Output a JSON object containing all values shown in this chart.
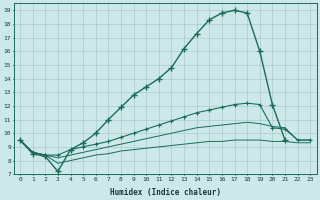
{
  "xlabel": "Humidex (Indice chaleur)",
  "bg_color": "#cce8e8",
  "grid_color": "#aacccc",
  "line_color": "#1a6b5a",
  "xlim": [
    -0.5,
    23.5
  ],
  "ylim": [
    7,
    19.5
  ],
  "xticks": [
    0,
    1,
    2,
    3,
    4,
    5,
    6,
    7,
    8,
    9,
    10,
    11,
    12,
    13,
    14,
    15,
    16,
    17,
    18,
    19,
    20,
    21,
    22,
    23
  ],
  "yticks": [
    7,
    8,
    9,
    10,
    11,
    12,
    13,
    14,
    15,
    16,
    17,
    18,
    19
  ],
  "curve1_x": [
    0,
    1,
    2,
    3,
    4,
    5,
    6,
    7,
    8,
    9,
    10,
    11,
    12,
    13,
    14,
    15,
    16,
    17,
    18,
    19,
    20,
    21
  ],
  "curve1_y": [
    9.5,
    8.5,
    8.3,
    7.2,
    8.8,
    9.3,
    10.0,
    11.0,
    11.9,
    12.8,
    13.4,
    14.0,
    14.8,
    16.2,
    17.3,
    18.3,
    18.8,
    19.0,
    18.8,
    16.0,
    12.1,
    9.5
  ],
  "curve2_x": [
    0,
    1,
    2,
    3,
    4,
    5,
    6,
    7,
    8,
    9,
    10,
    11,
    12,
    13,
    14,
    15,
    16,
    17,
    18,
    19,
    20,
    21,
    22,
    23
  ],
  "curve2_y": [
    9.5,
    8.6,
    8.4,
    8.4,
    8.8,
    9.0,
    9.2,
    9.4,
    9.7,
    10.0,
    10.3,
    10.6,
    10.9,
    11.2,
    11.5,
    11.7,
    11.9,
    12.1,
    12.2,
    12.1,
    10.4,
    10.3,
    9.5,
    9.5
  ],
  "curve3_x": [
    0,
    1,
    2,
    3,
    4,
    5,
    6,
    7,
    8,
    9,
    10,
    11,
    12,
    13,
    14,
    15,
    16,
    17,
    18,
    19,
    20,
    21,
    22,
    23
  ],
  "curve3_y": [
    9.5,
    8.6,
    8.4,
    8.2,
    8.4,
    8.6,
    8.8,
    9.0,
    9.2,
    9.4,
    9.6,
    9.8,
    10.0,
    10.2,
    10.4,
    10.5,
    10.6,
    10.7,
    10.8,
    10.7,
    10.5,
    10.4,
    9.5,
    9.5
  ],
  "curve4_x": [
    0,
    1,
    2,
    3,
    4,
    5,
    6,
    7,
    8,
    9,
    10,
    11,
    12,
    13,
    14,
    15,
    16,
    17,
    18,
    19,
    20,
    21,
    22,
    23
  ],
  "curve4_y": [
    9.5,
    8.6,
    8.4,
    7.8,
    8.0,
    8.2,
    8.4,
    8.5,
    8.7,
    8.8,
    8.9,
    9.0,
    9.1,
    9.2,
    9.3,
    9.4,
    9.4,
    9.5,
    9.5,
    9.5,
    9.4,
    9.4,
    9.3,
    9.3
  ]
}
